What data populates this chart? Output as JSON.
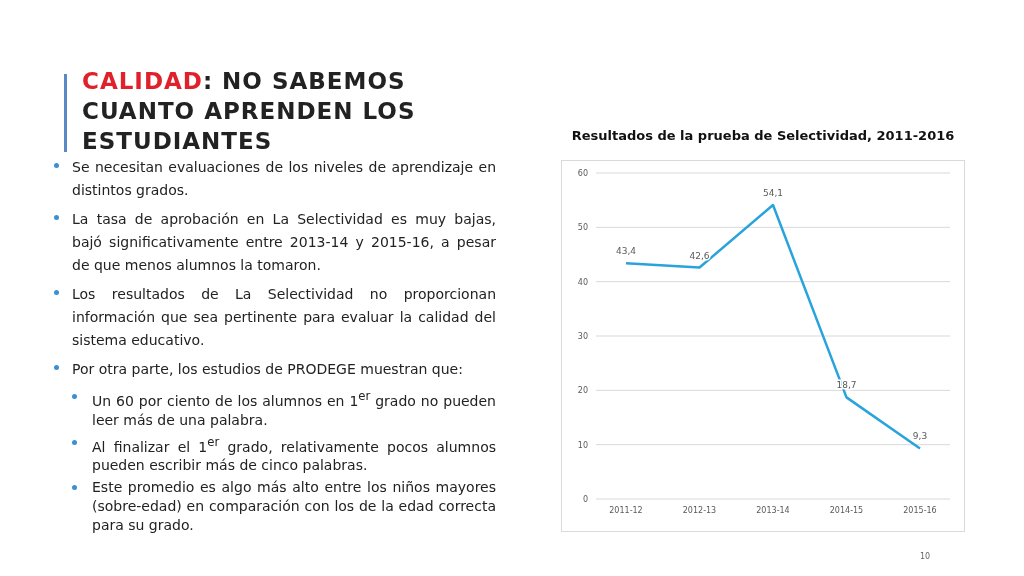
{
  "chart_data": {
    "type": "line",
    "title": "Resultados de la prueba de Selectividad, 2011-2016",
    "categories": [
      "2011-12",
      "2012-13",
      "2013-14",
      "2014-15",
      "2015-16"
    ],
    "series": [
      {
        "color": "#29a3dc",
        "values": [
          43.4,
          42.6,
          54.1,
          18.7,
          9.3
        ],
        "value_labels": [
          "43,4",
          "42,6",
          "54,1",
          "18,7",
          "9,3"
        ]
      }
    ],
    "ylim": [
      0,
      60
    ],
    "yticks": [
      0,
      10,
      20,
      30,
      40,
      50,
      60
    ],
    "grid": "y",
    "legend": false,
    "marker": "none",
    "line_style": "solid",
    "annotations": [
      "CALIDAD: NO SABEMOS CUANTO APRENDEN LOS ESTUDIANTES",
      "Se necesitan evaluaciones de los niveles de aprendizaje en distintos grados.",
      "La tasa de aprobación en La Selectividad es muy bajas, bajó significativamente entre 2013-14 y 2015-16, a pesar de que menos alumnos la tomaron.",
      "Los resultados de La Selectividad no proporcionan información que sea pertinente para evaluar la calidad del sistema educativo.",
      "Por otra parte, los estudios de PRODEGE muestran que:",
      "Un 60 por ciento de los alumnos en 1$^{er}$ grado no pueden leer más de una palabra.",
      "Al finalizar el 1$^{er}$ grado, relativamente pocos alumnos pueden escribir más de cinco palabras.",
      "Este promedio es algo más alto entre los niños mayores (sobre-edad) en comparación con los de la edad correcta para su grado.",
      "10"
    ]
  }
}
